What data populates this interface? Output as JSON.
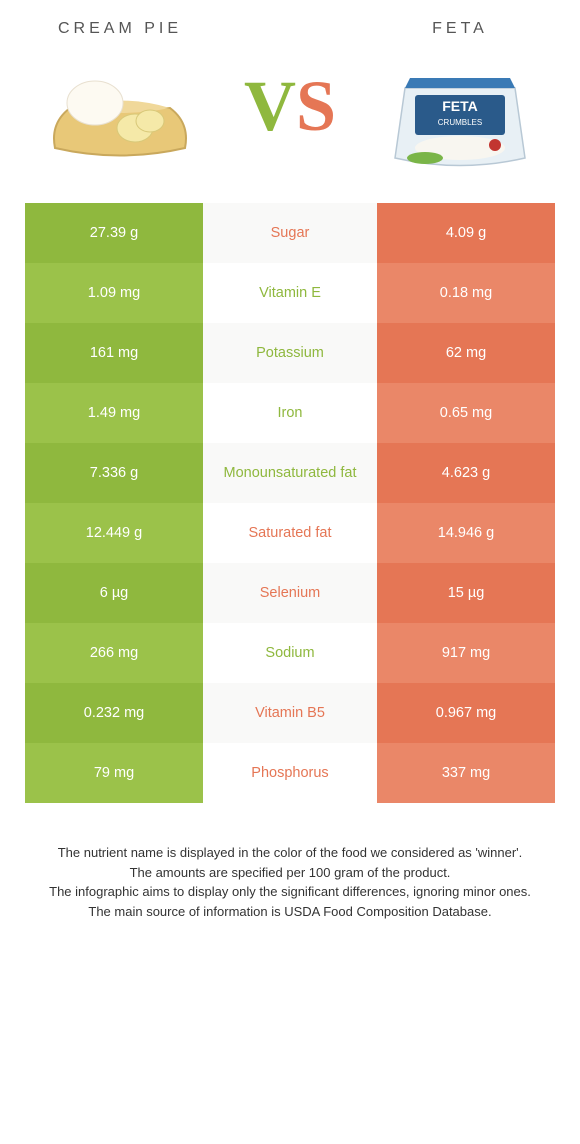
{
  "foods": {
    "left": {
      "name": "CREAM PIE",
      "color": "#8fb83e"
    },
    "right": {
      "name": "FETA",
      "color": "#e57655"
    }
  },
  "colors": {
    "green_dark": "#8fb83e",
    "green_light": "#9bc24a",
    "orange_dark": "#e57655",
    "orange_light": "#ea8768",
    "mid_alt_bg": "#f9f9f8",
    "text_dark": "#333333"
  },
  "vs": {
    "v": "V",
    "s": "S"
  },
  "rows": [
    {
      "left": "27.39 g",
      "label": "Sugar",
      "right": "4.09 g",
      "winner": "right"
    },
    {
      "left": "1.09 mg",
      "label": "Vitamin E",
      "right": "0.18 mg",
      "winner": "left"
    },
    {
      "left": "161 mg",
      "label": "Potassium",
      "right": "62 mg",
      "winner": "left"
    },
    {
      "left": "1.49 mg",
      "label": "Iron",
      "right": "0.65 mg",
      "winner": "left"
    },
    {
      "left": "7.336 g",
      "label": "Monounsaturated fat",
      "right": "4.623 g",
      "winner": "left"
    },
    {
      "left": "12.449 g",
      "label": "Saturated fat",
      "right": "14.946 g",
      "winner": "right"
    },
    {
      "left": "6 µg",
      "label": "Selenium",
      "right": "15 µg",
      "winner": "right"
    },
    {
      "left": "266 mg",
      "label": "Sodium",
      "right": "917 mg",
      "winner": "left"
    },
    {
      "left": "0.232 mg",
      "label": "Vitamin B5",
      "right": "0.967 mg",
      "winner": "right"
    },
    {
      "left": "79 mg",
      "label": "Phosphorus",
      "right": "337 mg",
      "winner": "right"
    }
  ],
  "footnote": {
    "line1": "The nutrient name is displayed in the color of the food we considered as 'winner'.",
    "line2": "The amounts are specified per 100 gram of the product.",
    "line3": "The infographic aims to display only the significant differences, ignoring minor ones.",
    "line4": "The main source of information is USDA Food Composition Database."
  }
}
